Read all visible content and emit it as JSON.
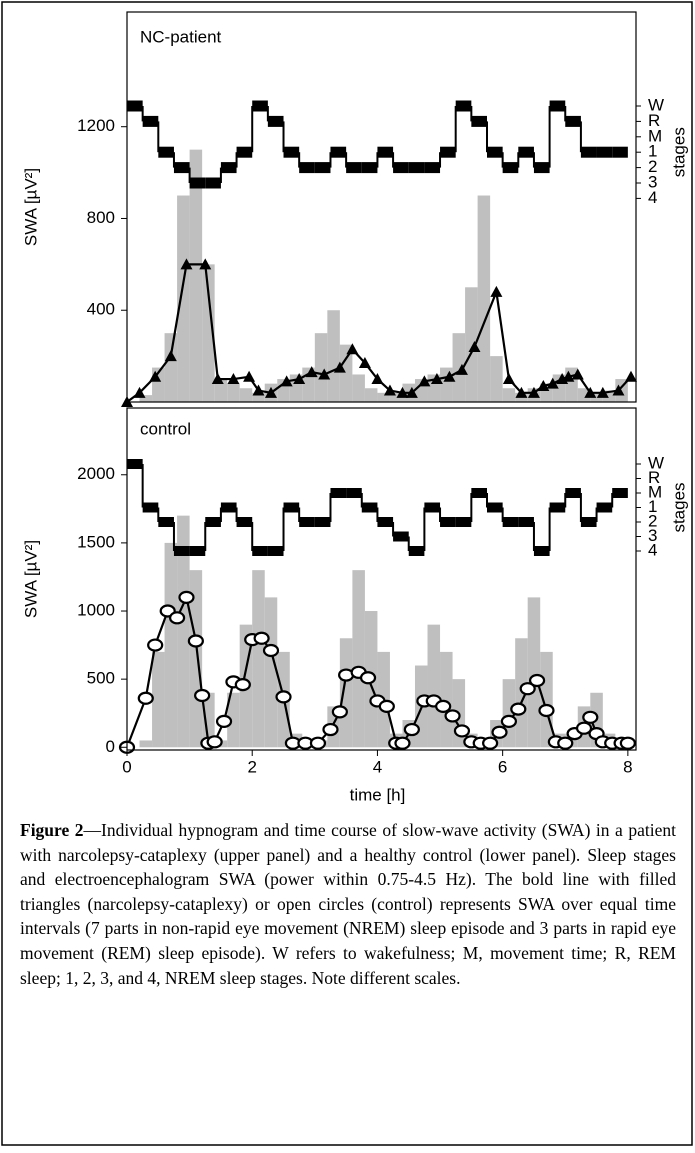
{
  "chart_data": [
    {
      "type": "combo",
      "panel_label": "NC-patient",
      "ylabel": "SWA [µV²]",
      "xlim": [
        0,
        8.13
      ],
      "ylim": [
        0,
        1700
      ],
      "yticks": [
        400,
        800,
        1200
      ],
      "histogram": {
        "color": "#bfbfbf",
        "bins": [
          0,
          0.2,
          0.4,
          0.6,
          0.8,
          1,
          1.2,
          1.4,
          1.6,
          1.8,
          2,
          2.2,
          2.4,
          2.6,
          2.8,
          3,
          3.2,
          3.4,
          3.6,
          3.8,
          4,
          4.2,
          4.4,
          4.6,
          4.8,
          5,
          5.2,
          5.4,
          5.6,
          5.8,
          6,
          6.2,
          6.4,
          6.6,
          6.8,
          7,
          7.2,
          7.4,
          7.6,
          7.8,
          8
        ],
        "counts": [
          0,
          30,
          150,
          300,
          900,
          1100,
          600,
          100,
          80,
          60,
          40,
          80,
          100,
          120,
          150,
          300,
          400,
          250,
          120,
          60,
          40,
          40,
          80,
          100,
          120,
          150,
          300,
          500,
          900,
          200,
          60,
          40,
          60,
          80,
          120,
          150,
          60,
          40,
          50,
          100
        ]
      },
      "line": {
        "marker": "triangle",
        "color": "#000000",
        "x": [
          0,
          0.2,
          0.45,
          0.7,
          0.95,
          1.25,
          1.45,
          1.7,
          1.95,
          2.1,
          2.3,
          2.55,
          2.75,
          2.95,
          3.15,
          3.4,
          3.6,
          3.8,
          4.0,
          4.2,
          4.4,
          4.55,
          4.75,
          4.95,
          5.15,
          5.35,
          5.55,
          5.9,
          6.1,
          6.3,
          6.5,
          6.65,
          6.8,
          6.95,
          7.05,
          7.2,
          7.4,
          7.6,
          7.85,
          8.05
        ],
        "y": [
          0,
          40,
          110,
          200,
          600,
          600,
          100,
          100,
          110,
          50,
          40,
          90,
          100,
          130,
          120,
          150,
          230,
          170,
          100,
          50,
          40,
          40,
          90,
          100,
          110,
          140,
          240,
          480,
          100,
          40,
          40,
          70,
          80,
          100,
          110,
          120,
          40,
          40,
          50,
          110
        ]
      },
      "stage_axis": {
        "title": "stages",
        "labels": [
          "W",
          "R",
          "M",
          "1",
          "2",
          "3",
          "4"
        ]
      },
      "hypnogram": {
        "color": "#000000",
        "x": [
          0,
          0.25,
          0.5,
          0.75,
          1,
          1.25,
          1.5,
          1.75,
          2,
          2.25,
          2.5,
          2.75,
          3,
          3.25,
          3.5,
          3.75,
          4,
          4.25,
          4.5,
          4.75,
          5,
          5.25,
          5.5,
          5.75,
          6,
          6.25,
          6.5,
          6.75,
          7,
          7.25,
          7.5,
          7.75,
          8
        ],
        "stages": [
          0,
          1,
          3,
          4,
          5,
          5,
          4,
          3,
          0,
          1,
          3,
          4,
          4,
          3,
          4,
          4,
          3,
          4,
          4,
          4,
          3,
          0,
          1,
          3,
          4,
          3,
          4,
          0,
          1,
          3,
          3,
          3
        ]
      }
    },
    {
      "type": "combo",
      "panel_label": "control",
      "ylabel": "SWA [µV²]",
      "xlabel": "time [h]",
      "xlim": [
        0,
        8.13
      ],
      "xticks": [
        0,
        2,
        4,
        6,
        8
      ],
      "ylim": [
        -20,
        2490
      ],
      "yticks": [
        0,
        500,
        1000,
        1500,
        2000
      ],
      "histogram": {
        "color": "#bfbfbf",
        "bins": [
          0,
          0.2,
          0.4,
          0.6,
          0.8,
          1,
          1.2,
          1.4,
          1.6,
          1.8,
          2,
          2.2,
          2.4,
          2.6,
          2.8,
          3,
          3.2,
          3.4,
          3.6,
          3.8,
          4,
          4.2,
          4.4,
          4.6,
          4.8,
          5,
          5.2,
          5.4,
          5.6,
          5.8,
          6,
          6.2,
          6.4,
          6.6,
          6.8,
          7,
          7.2,
          7.4,
          7.6,
          7.8,
          8
        ],
        "counts": [
          0,
          50,
          700,
          1500,
          1700,
          1300,
          400,
          50,
          400,
          900,
          1300,
          1100,
          700,
          100,
          30,
          50,
          300,
          800,
          1300,
          1000,
          700,
          100,
          200,
          600,
          900,
          700,
          500,
          100,
          50,
          200,
          500,
          800,
          1100,
          700,
          100,
          100,
          300,
          400,
          100,
          50
        ]
      },
      "line": {
        "marker": "circle-open",
        "color": "#000000",
        "x": [
          0,
          0.3,
          0.45,
          0.65,
          0.8,
          0.95,
          1.1,
          1.2,
          1.3,
          1.4,
          1.55,
          1.7,
          1.85,
          2.0,
          2.15,
          2.3,
          2.5,
          2.65,
          2.85,
          3.05,
          3.25,
          3.4,
          3.5,
          3.7,
          3.85,
          4.0,
          4.15,
          4.3,
          4.4,
          4.55,
          4.75,
          4.9,
          5.05,
          5.2,
          5.35,
          5.5,
          5.65,
          5.8,
          5.95,
          6.1,
          6.25,
          6.4,
          6.55,
          6.7,
          6.85,
          7.0,
          7.15,
          7.3,
          7.4,
          7.5,
          7.6,
          7.75,
          7.9,
          8.0
        ],
        "y": [
          0,
          360,
          750,
          1000,
          950,
          1100,
          780,
          380,
          30,
          40,
          190,
          480,
          460,
          790,
          800,
          710,
          370,
          30,
          30,
          30,
          130,
          260,
          530,
          550,
          510,
          340,
          300,
          30,
          30,
          130,
          340,
          340,
          300,
          230,
          120,
          40,
          30,
          30,
          110,
          190,
          280,
          430,
          490,
          270,
          40,
          30,
          100,
          140,
          220,
          100,
          40,
          30,
          30,
          30
        ]
      },
      "stage_axis": {
        "title": "stages",
        "labels": [
          "W",
          "R",
          "M",
          "1",
          "2",
          "3",
          "4"
        ]
      },
      "hypnogram": {
        "color": "#000000",
        "x": [
          0,
          0.25,
          0.5,
          0.75,
          1,
          1.25,
          1.5,
          1.75,
          2,
          2.25,
          2.5,
          2.75,
          3,
          3.25,
          3.5,
          3.75,
          4,
          4.25,
          4.5,
          4.75,
          5,
          5.25,
          5.5,
          5.75,
          6,
          6.25,
          6.5,
          6.75,
          7,
          7.25,
          7.5,
          7.75,
          8
        ],
        "stages": [
          0,
          3,
          4,
          6,
          6,
          4,
          3,
          4,
          6,
          6,
          3,
          4,
          4,
          2,
          2,
          3,
          4,
          5,
          6,
          3,
          4,
          4,
          2,
          3,
          4,
          4,
          6,
          3,
          2,
          4,
          3,
          2
        ]
      }
    }
  ],
  "caption": {
    "label": "Figure 2",
    "text": "—Individual hypnogram and time course of slow-wave activity (SWA) in a patient with narcolepsy-cataplexy (upper panel) and a healthy control (lower panel). Sleep stages and electroencephalogram SWA (power within 0.75-4.5 Hz). The bold line with filled triangles (narcolepsy-cataplexy) or open circles (control) represents SWA over equal time intervals (7 parts in non-rapid eye movement (NREM) sleep episode and 3 parts in rapid eye movement (REM) sleep episode). W refers to wakefulness; M, movement time; R, REM sleep; 1, 2, 3, and 4, NREM sleep stages. Note different scales."
  }
}
